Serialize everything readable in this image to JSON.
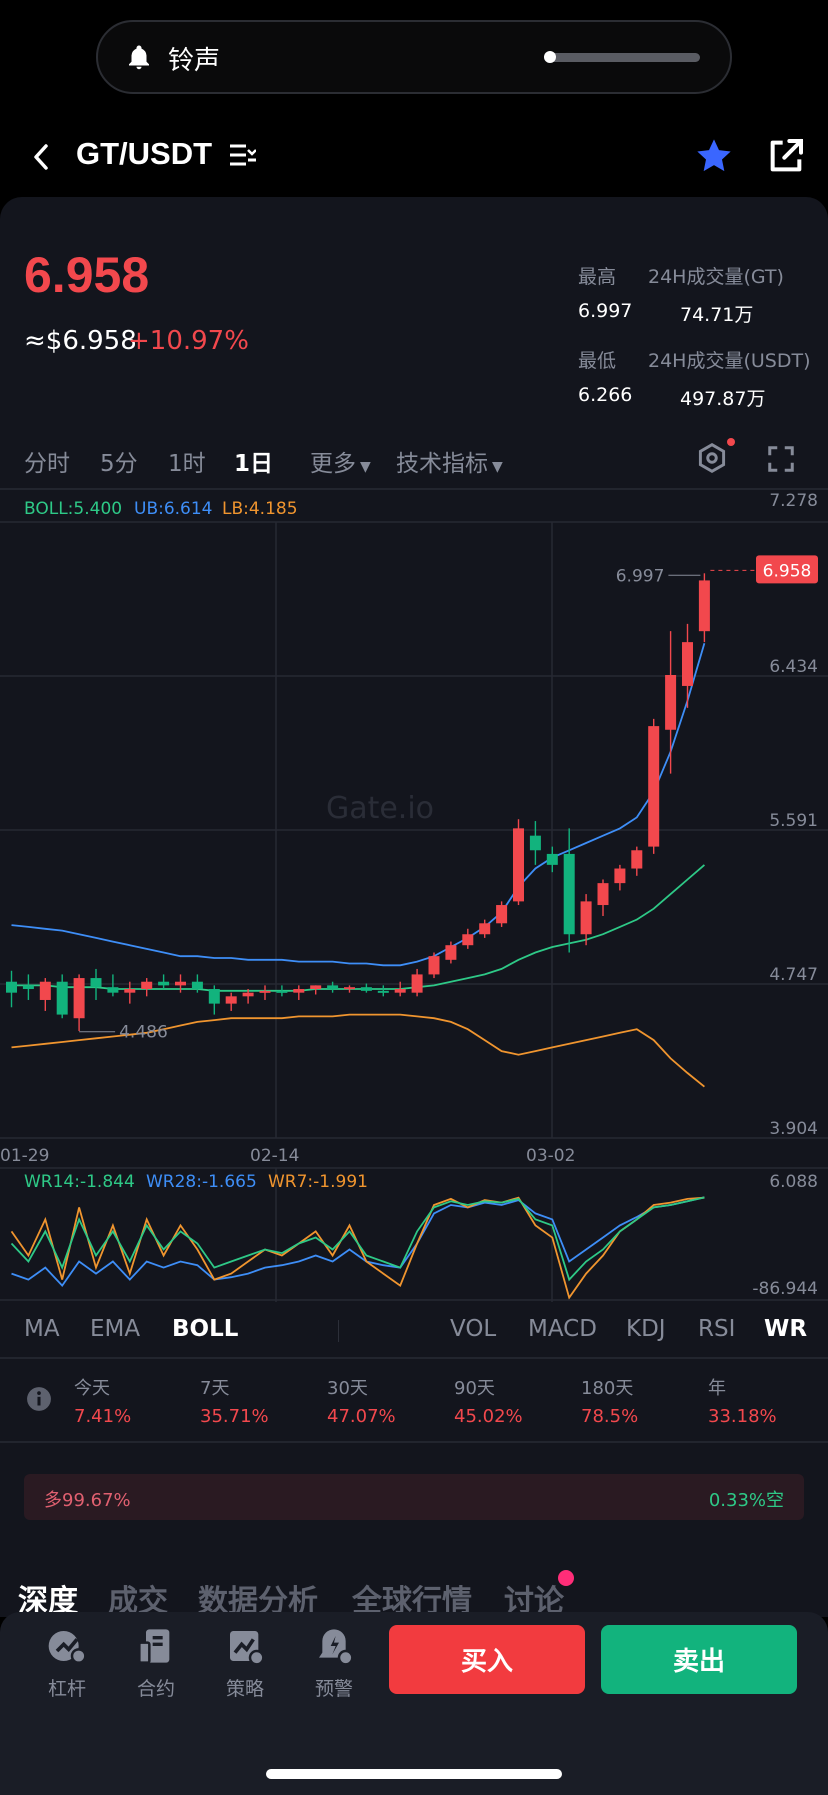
{
  "notification": {
    "text": "铃声"
  },
  "header": {
    "pair": "GT/USDT"
  },
  "ticker": {
    "price": "6.958",
    "approx": "≈$6.958",
    "change": "+10.97%",
    "high_label": "最高",
    "high": "6.997",
    "low_label": "最低",
    "low": "6.266",
    "vol_gt_label": "24H成交量(GT)",
    "vol_gt": "74.71万",
    "vol_usdt_label": "24H成交量(USDT)",
    "vol_usdt": "497.87万"
  },
  "period_tabs": [
    "分时",
    "5分",
    "1时",
    "1日",
    "更多",
    "技术指标"
  ],
  "active_period": "1日",
  "boll_legend": {
    "boll": "BOLL:5.400",
    "ub": "UB:6.614",
    "lb": "LB:4.185"
  },
  "wr_legend": {
    "wr14": "WR14:-1.844",
    "wr28": "WR28:-1.665",
    "wr7": "WR7:-1.991"
  },
  "price_axis": [
    "7.278",
    "6.434",
    "5.591",
    "4.747",
    "3.904"
  ],
  "wr_axis": [
    "6.088",
    "-86.944"
  ],
  "date_axis": [
    "01-29",
    "02-14",
    "03-02"
  ],
  "annotations": {
    "high_mark": "6.997",
    "low_mark": "4.486",
    "last_price_tag": "6.958"
  },
  "watermark": "Gate.io",
  "indicator_tabs_main": [
    "MA",
    "EMA",
    "BOLL"
  ],
  "indicator_tabs_sub": [
    "VOL",
    "MACD",
    "KDJ",
    "RSI",
    "WR"
  ],
  "performance": [
    {
      "label": "今天",
      "value": "7.41%"
    },
    {
      "label": "7天",
      "value": "35.71%"
    },
    {
      "label": "30天",
      "value": "47.07%"
    },
    {
      "label": "90天",
      "value": "45.02%"
    },
    {
      "label": "180天",
      "value": "78.5%"
    },
    {
      "label": "年",
      "value": "33.18%"
    }
  ],
  "ratio": {
    "long": "多99.67%",
    "short": "0.33%空",
    "long_fraction": 0.9967
  },
  "detail_tabs": [
    "深度",
    "成交",
    "数据分析",
    "全球行情",
    "讨论"
  ],
  "bottom_nav": [
    {
      "label": "杠杆",
      "icon": "leverage-icon"
    },
    {
      "label": "合约",
      "icon": "contract-icon"
    },
    {
      "label": "策略",
      "icon": "strategy-icon"
    },
    {
      "label": "预警",
      "icon": "alert-icon"
    }
  ],
  "buy_label": "买入",
  "sell_label": "卖出",
  "colors": {
    "up": "#f2484d",
    "down": "#12b37d",
    "boll": "#2ec987",
    "ub": "#3e8ef7",
    "lb": "#f0952f",
    "accent": "#3a66ff"
  },
  "chart_data": {
    "type": "candlestick",
    "price_range": [
      3.904,
      7.278
    ],
    "candles": [
      {
        "o": 4.76,
        "h": 4.82,
        "l": 4.62,
        "c": 4.7
      },
      {
        "o": 4.74,
        "h": 4.8,
        "l": 4.66,
        "c": 4.72
      },
      {
        "o": 4.66,
        "h": 4.78,
        "l": 4.6,
        "c": 4.76
      },
      {
        "o": 4.76,
        "h": 4.8,
        "l": 4.56,
        "c": 4.58
      },
      {
        "o": 4.56,
        "h": 4.8,
        "l": 4.49,
        "c": 4.78
      },
      {
        "o": 4.78,
        "h": 4.83,
        "l": 4.66,
        "c": 4.73
      },
      {
        "o": 4.73,
        "h": 4.8,
        "l": 4.68,
        "c": 4.7
      },
      {
        "o": 4.7,
        "h": 4.76,
        "l": 4.64,
        "c": 4.72
      },
      {
        "o": 4.72,
        "h": 4.78,
        "l": 4.68,
        "c": 4.76
      },
      {
        "o": 4.76,
        "h": 4.8,
        "l": 4.72,
        "c": 4.74
      },
      {
        "o": 4.74,
        "h": 4.8,
        "l": 4.7,
        "c": 4.76
      },
      {
        "o": 4.76,
        "h": 4.8,
        "l": 4.7,
        "c": 4.72
      },
      {
        "o": 4.72,
        "h": 4.74,
        "l": 4.58,
        "c": 4.64
      },
      {
        "o": 4.64,
        "h": 4.7,
        "l": 4.6,
        "c": 4.68
      },
      {
        "o": 4.68,
        "h": 4.72,
        "l": 4.64,
        "c": 4.7
      },
      {
        "o": 4.7,
        "h": 4.74,
        "l": 4.66,
        "c": 4.71
      },
      {
        "o": 4.71,
        "h": 4.74,
        "l": 4.68,
        "c": 4.7
      },
      {
        "o": 4.7,
        "h": 4.74,
        "l": 4.66,
        "c": 4.72
      },
      {
        "o": 4.72,
        "h": 4.74,
        "l": 4.69,
        "c": 4.74
      },
      {
        "o": 4.74,
        "h": 4.76,
        "l": 4.7,
        "c": 4.72
      },
      {
        "o": 4.72,
        "h": 4.74,
        "l": 4.7,
        "c": 4.73
      },
      {
        "o": 4.73,
        "h": 4.75,
        "l": 4.7,
        "c": 4.71
      },
      {
        "o": 4.71,
        "h": 4.74,
        "l": 4.68,
        "c": 4.7
      },
      {
        "o": 4.7,
        "h": 4.76,
        "l": 4.68,
        "c": 4.72
      },
      {
        "o": 4.7,
        "h": 4.83,
        "l": 4.68,
        "c": 4.8
      },
      {
        "o": 4.8,
        "h": 4.92,
        "l": 4.78,
        "c": 4.9
      },
      {
        "o": 4.88,
        "h": 4.98,
        "l": 4.86,
        "c": 4.96
      },
      {
        "o": 4.96,
        "h": 5.05,
        "l": 4.94,
        "c": 5.02
      },
      {
        "o": 5.02,
        "h": 5.1,
        "l": 5.0,
        "c": 5.08
      },
      {
        "o": 5.08,
        "h": 5.2,
        "l": 5.06,
        "c": 5.18
      },
      {
        "o": 5.2,
        "h": 5.65,
        "l": 5.18,
        "c": 5.6
      },
      {
        "o": 5.56,
        "h": 5.64,
        "l": 5.4,
        "c": 5.48
      },
      {
        "o": 5.46,
        "h": 5.5,
        "l": 5.36,
        "c": 5.4
      },
      {
        "o": 5.46,
        "h": 5.6,
        "l": 4.92,
        "c": 5.02
      },
      {
        "o": 5.02,
        "h": 5.24,
        "l": 4.96,
        "c": 5.2
      },
      {
        "o": 5.18,
        "h": 5.32,
        "l": 5.12,
        "c": 5.3
      },
      {
        "o": 5.3,
        "h": 5.4,
        "l": 5.26,
        "c": 5.38
      },
      {
        "o": 5.38,
        "h": 5.5,
        "l": 5.34,
        "c": 5.48
      },
      {
        "o": 5.5,
        "h": 6.2,
        "l": 5.46,
        "c": 6.16
      },
      {
        "o": 6.14,
        "h": 6.68,
        "l": 5.9,
        "c": 6.44
      },
      {
        "o": 6.38,
        "h": 6.72,
        "l": 6.26,
        "c": 6.62
      },
      {
        "o": 6.68,
        "h": 6.997,
        "l": 6.62,
        "c": 6.958
      }
    ],
    "boll": [
      4.74,
      4.74,
      4.74,
      4.73,
      4.73,
      4.73,
      4.72,
      4.72,
      4.72,
      4.72,
      4.72,
      4.72,
      4.71,
      4.71,
      4.71,
      4.71,
      4.71,
      4.71,
      4.72,
      4.72,
      4.72,
      4.72,
      4.72,
      4.72,
      4.73,
      4.74,
      4.76,
      4.78,
      4.8,
      4.83,
      4.88,
      4.92,
      4.95,
      4.97,
      4.99,
      5.02,
      5.06,
      5.1,
      5.16,
      5.24,
      5.32,
      5.4
    ],
    "ub": [
      5.07,
      5.06,
      5.05,
      5.04,
      5.02,
      5.0,
      4.98,
      4.96,
      4.94,
      4.92,
      4.9,
      4.9,
      4.89,
      4.89,
      4.88,
      4.88,
      4.88,
      4.87,
      4.87,
      4.87,
      4.86,
      4.86,
      4.85,
      4.85,
      4.87,
      4.9,
      4.95,
      5.0,
      5.06,
      5.14,
      5.28,
      5.38,
      5.44,
      5.48,
      5.52,
      5.56,
      5.6,
      5.66,
      5.8,
      6.02,
      6.3,
      6.614
    ],
    "lb": [
      4.4,
      4.41,
      4.42,
      4.43,
      4.44,
      4.45,
      4.46,
      4.47,
      4.48,
      4.5,
      4.52,
      4.54,
      4.55,
      4.56,
      4.56,
      4.56,
      4.56,
      4.57,
      4.57,
      4.57,
      4.58,
      4.58,
      4.58,
      4.58,
      4.57,
      4.56,
      4.54,
      4.5,
      4.44,
      4.38,
      4.36,
      4.38,
      4.4,
      4.42,
      4.44,
      4.46,
      4.48,
      4.5,
      4.44,
      4.34,
      4.26,
      4.185
    ],
    "wr14": [
      -40,
      -55,
      -30,
      -60,
      -20,
      -50,
      -30,
      -55,
      -25,
      -45,
      -30,
      -40,
      -60,
      -55,
      -50,
      -45,
      -48,
      -40,
      -35,
      -45,
      -30,
      -50,
      -55,
      -60,
      -30,
      -10,
      -5,
      -8,
      -5,
      -6,
      -3,
      -20,
      -25,
      -70,
      -55,
      -45,
      -30,
      -20,
      -10,
      -8,
      -5,
      -1.844
    ],
    "wr28": [
      -65,
      -70,
      -60,
      -75,
      -55,
      -65,
      -55,
      -70,
      -55,
      -60,
      -55,
      -58,
      -70,
      -68,
      -65,
      -60,
      -58,
      -55,
      -50,
      -55,
      -45,
      -55,
      -58,
      -60,
      -40,
      -15,
      -8,
      -10,
      -6,
      -8,
      -4,
      -15,
      -20,
      -55,
      -45,
      -35,
      -25,
      -18,
      -10,
      -8,
      -5,
      -1.665
    ],
    "wr7": [
      -30,
      -50,
      -20,
      -70,
      -10,
      -60,
      -25,
      -65,
      -20,
      -50,
      -25,
      -45,
      -70,
      -65,
      -55,
      -45,
      -50,
      -40,
      -30,
      -50,
      -25,
      -55,
      -65,
      -75,
      -40,
      -8,
      -3,
      -10,
      -4,
      -6,
      -2,
      -25,
      -35,
      -85,
      -65,
      -50,
      -30,
      -20,
      -8,
      -6,
      -3,
      -1.991
    ],
    "wr_range": [
      -86.944,
      6.088
    ]
  }
}
